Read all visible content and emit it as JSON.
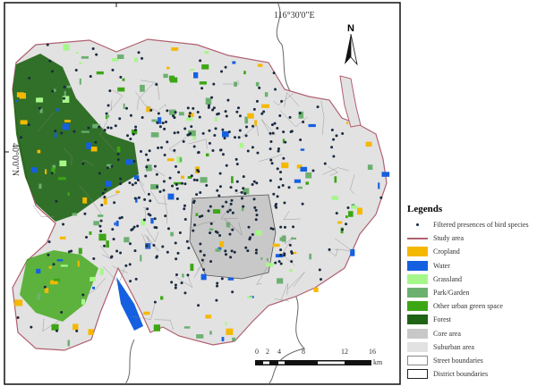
{
  "map": {
    "longitude_label": "116°30'0\"E",
    "latitude_label": "40°0'0\"N",
    "north_label": "N",
    "scale": {
      "ticks": [
        "0",
        "2",
        "4",
        "8",
        "12",
        "16"
      ],
      "unit": "km"
    }
  },
  "legend": {
    "title": "Legends",
    "items": [
      {
        "label": "Filtered presences of bird species",
        "kind": "dot",
        "color": "#1a2a40"
      },
      {
        "label": "Study area",
        "kind": "line",
        "color": "#b06070"
      },
      {
        "label": "Cropland",
        "kind": "fill",
        "color": "#f5b800"
      },
      {
        "label": "Water",
        "kind": "fill",
        "color": "#1560e0"
      },
      {
        "label": "Grassland",
        "kind": "fill",
        "color": "#a6f78a"
      },
      {
        "label": "Park/Garden",
        "kind": "fill",
        "color": "#6cb070"
      },
      {
        "label": "Other urban green space",
        "kind": "fill",
        "color": "#3ca614"
      },
      {
        "label": "Forest",
        "kind": "fill",
        "color": "#1e6414"
      },
      {
        "label": "Core area",
        "kind": "fill",
        "color": "#c8c8c8"
      },
      {
        "label": "Suburban area",
        "kind": "fill",
        "color": "#e2e2e2"
      },
      {
        "label": "Street boundaries",
        "kind": "outline",
        "color": "#888888"
      },
      {
        "label": "District boundaries",
        "kind": "outline",
        "color": "#222222"
      }
    ]
  }
}
